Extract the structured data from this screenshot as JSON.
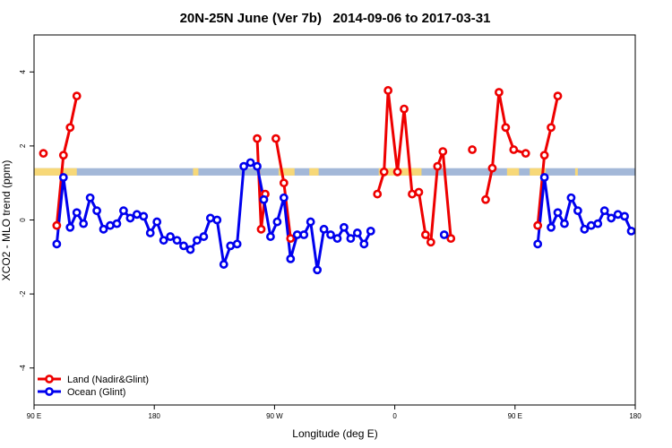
{
  "title": "20N-25N June (Ver 7b)   2014-09-06 to 2017-03-31",
  "chart_data": {
    "type": "line",
    "title": "20N-25N June (Ver 7b)   2014-09-06 to 2017-03-31",
    "xlabel": "Longitude (deg E)",
    "ylabel": "XCO2 - MLO trend (ppm)",
    "xlim": [
      90,
      540
    ],
    "ylim": [
      -5,
      5
    ],
    "x_ticks": [
      {
        "value": 90,
        "label": "90 E"
      },
      {
        "value": 180,
        "label": "180"
      },
      {
        "value": 270,
        "label": "90 W"
      },
      {
        "value": 360,
        "label": "0"
      },
      {
        "value": 450,
        "label": "90 E"
      },
      {
        "value": 540,
        "label": "180"
      }
    ],
    "y_ticks": [
      {
        "value": -4,
        "label": "-4"
      },
      {
        "value": -2,
        "label": "-2"
      },
      {
        "value": 0,
        "label": "0"
      },
      {
        "value": 2,
        "label": "2"
      },
      {
        "value": 4,
        "label": "4"
      }
    ],
    "grid": false,
    "legend_position": "bottom-left",
    "land_ocean_band": {
      "y_range": [
        1.2,
        1.4
      ],
      "ocean_color": "#a3b8d8",
      "land_color": "#f7d878",
      "land_segments": [
        [
          90,
          122
        ],
        [
          209,
          213
        ],
        [
          273,
          285
        ],
        [
          296,
          303
        ],
        [
          348,
          380
        ],
        [
          444,
          453
        ],
        [
          461,
          473
        ],
        [
          495,
          497
        ]
      ]
    },
    "series": [
      {
        "name": "Land (Nadir&Glint)",
        "color": "#ee0000",
        "segments": [
          [
            [
              97,
              1.8
            ]
          ],
          [
            [
              107,
              -0.15
            ],
            [
              112,
              1.75
            ],
            [
              117,
              2.5
            ],
            [
              122,
              3.35
            ]
          ],
          [
            [
              257,
              2.2
            ],
            [
              260,
              -0.25
            ],
            [
              263,
              0.7
            ]
          ],
          [
            [
              271,
              2.2
            ],
            [
              277,
              1.0
            ],
            [
              282,
              -0.5
            ]
          ],
          [
            [
              347,
              0.7
            ],
            [
              352,
              1.3
            ],
            [
              355,
              3.5
            ],
            [
              362,
              1.3
            ],
            [
              367,
              3.0
            ],
            [
              373,
              0.7
            ],
            [
              378,
              0.75
            ],
            [
              383,
              -0.4
            ],
            [
              387,
              -0.6
            ],
            [
              392,
              1.45
            ],
            [
              396,
              1.85
            ],
            [
              402,
              -0.5
            ]
          ],
          [
            [
              418,
              1.9
            ]
          ],
          [
            [
              428,
              0.55
            ],
            [
              433,
              1.4
            ],
            [
              438,
              3.45
            ],
            [
              443,
              2.5
            ],
            [
              449,
              1.9
            ],
            [
              458,
              1.8
            ]
          ],
          [
            [
              467,
              -0.15
            ],
            [
              472,
              1.75
            ],
            [
              477,
              2.5
            ],
            [
              482,
              3.35
            ]
          ]
        ]
      },
      {
        "name": "Ocean (Glint)",
        "color": "#0000ee",
        "segments": [
          [
            [
              107,
              -0.65
            ],
            [
              112,
              1.15
            ],
            [
              117,
              -0.2
            ],
            [
              122,
              0.2
            ],
            [
              127,
              -0.1
            ],
            [
              132,
              0.6
            ],
            [
              137,
              0.25
            ],
            [
              142,
              -0.25
            ],
            [
              147,
              -0.15
            ],
            [
              152,
              -0.1
            ],
            [
              157,
              0.25
            ],
            [
              162,
              0.05
            ],
            [
              167,
              0.15
            ],
            [
              172,
              0.1
            ],
            [
              177,
              -0.35
            ],
            [
              182,
              -0.05
            ],
            [
              187,
              -0.55
            ],
            [
              192,
              -0.45
            ],
            [
              197,
              -0.55
            ],
            [
              202,
              -0.7
            ],
            [
              207,
              -0.8
            ],
            [
              212,
              -0.55
            ],
            [
              217,
              -0.45
            ],
            [
              222,
              0.05
            ],
            [
              227,
              0.0
            ],
            [
              232,
              -1.2
            ],
            [
              237,
              -0.7
            ],
            [
              242,
              -0.65
            ],
            [
              247,
              1.45
            ],
            [
              252,
              1.55
            ],
            [
              257,
              1.45
            ],
            [
              262,
              0.55
            ],
            [
              267,
              -0.45
            ],
            [
              272,
              -0.05
            ],
            [
              277,
              0.6
            ],
            [
              282,
              -1.05
            ],
            [
              287,
              -0.4
            ],
            [
              292,
              -0.4
            ],
            [
              297,
              -0.05
            ],
            [
              302,
              -1.35
            ],
            [
              307,
              -0.25
            ],
            [
              312,
              -0.4
            ],
            [
              317,
              -0.5
            ],
            [
              322,
              -0.2
            ],
            [
              327,
              -0.5
            ],
            [
              332,
              -0.35
            ],
            [
              337,
              -0.65
            ],
            [
              342,
              -0.3
            ]
          ],
          [
            [
              397,
              -0.4
            ]
          ],
          [
            [
              467,
              -0.65
            ],
            [
              472,
              1.15
            ],
            [
              477,
              -0.2
            ],
            [
              482,
              0.2
            ],
            [
              487,
              -0.1
            ],
            [
              492,
              0.6
            ],
            [
              497,
              0.25
            ],
            [
              502,
              -0.25
            ],
            [
              507,
              -0.15
            ],
            [
              512,
              -0.1
            ],
            [
              517,
              0.25
            ],
            [
              522,
              0.05
            ],
            [
              527,
              0.15
            ],
            [
              532,
              0.1
            ],
            [
              537,
              -0.3
            ]
          ]
        ]
      }
    ]
  }
}
